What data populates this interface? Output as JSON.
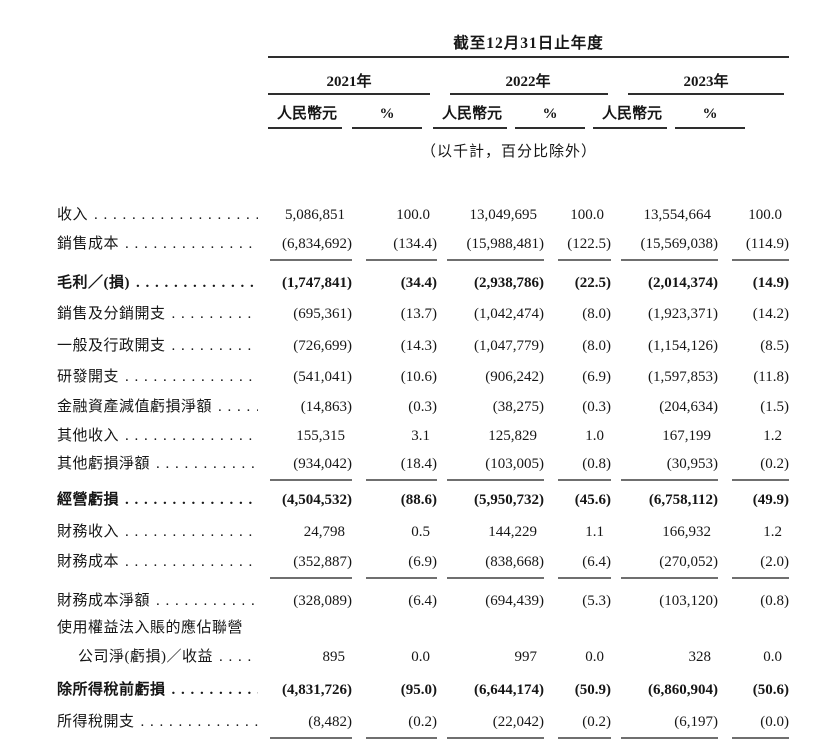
{
  "table": {
    "title": "截至12月31日止年度",
    "unit_note": "（以千計，百分比除外）",
    "year_groups": [
      {
        "year": "2021年",
        "rmb_label": "人民幣元",
        "pct_label": "%"
      },
      {
        "year": "2022年",
        "rmb_label": "人民幣元",
        "pct_label": "%"
      },
      {
        "year": "2023年",
        "rmb_label": "人民幣元",
        "pct_label": "%"
      }
    ],
    "rows": [
      {
        "label": "收入",
        "values": [
          "5,086,851",
          "100.0",
          "13,049,695",
          "100.0",
          "13,554,664",
          "100.0"
        ]
      },
      {
        "label": "銷售成本",
        "values": [
          "(6,834,692)",
          "(134.4)",
          "(15,988,481)",
          "(122.5)",
          "(15,569,038)",
          "(114.9)"
        ]
      },
      {
        "label": "毛利／(損)",
        "values": [
          "(1,747,841)",
          "(34.4)",
          "(2,938,786)",
          "(22.5)",
          "(2,014,374)",
          "(14.9)"
        ]
      },
      {
        "label": "銷售及分銷開支",
        "values": [
          "(695,361)",
          "(13.7)",
          "(1,042,474)",
          "(8.0)",
          "(1,923,371)",
          "(14.2)"
        ]
      },
      {
        "label": "一般及行政開支",
        "values": [
          "(726,699)",
          "(14.3)",
          "(1,047,779)",
          "(8.0)",
          "(1,154,126)",
          "(8.5)"
        ]
      },
      {
        "label": "研發開支",
        "values": [
          "(541,041)",
          "(10.6)",
          "(906,242)",
          "(6.9)",
          "(1,597,853)",
          "(11.8)"
        ]
      },
      {
        "label": "金融資產減值虧損淨額",
        "values": [
          "(14,863)",
          "(0.3)",
          "(38,275)",
          "(0.3)",
          "(204,634)",
          "(1.5)"
        ]
      },
      {
        "label": "其他收入",
        "values": [
          "155,315",
          "3.1",
          "125,829",
          "1.0",
          "167,199",
          "1.2"
        ]
      },
      {
        "label": "其他虧損淨額",
        "values": [
          "(934,042)",
          "(18.4)",
          "(103,005)",
          "(0.8)",
          "(30,953)",
          "(0.2)"
        ]
      },
      {
        "label": "經營虧損",
        "values": [
          "(4,504,532)",
          "(88.6)",
          "(5,950,732)",
          "(45.6)",
          "(6,758,112)",
          "(49.9)"
        ]
      },
      {
        "label": "財務收入",
        "values": [
          "24,798",
          "0.5",
          "144,229",
          "1.1",
          "166,932",
          "1.2"
        ]
      },
      {
        "label": "財務成本",
        "values": [
          "(352,887)",
          "(6.9)",
          "(838,668)",
          "(6.4)",
          "(270,052)",
          "(2.0)"
        ]
      },
      {
        "label": "財務成本淨額",
        "values": [
          "(328,089)",
          "(6.4)",
          "(694,439)",
          "(5.3)",
          "(103,120)",
          "(0.8)"
        ]
      },
      {
        "label": "使用權益法入賬的應佔聯營",
        "values": []
      },
      {
        "label": "公司淨(虧損)／收益",
        "values": [
          "895",
          "0.0",
          "997",
          "0.0",
          "328",
          "0.0"
        ]
      },
      {
        "label": "除所得稅前虧損",
        "values": [
          "(4,831,726)",
          "(95.0)",
          "(6,644,174)",
          "(50.9)",
          "(6,860,904)",
          "(50.6)"
        ]
      },
      {
        "label": "所得稅開支",
        "values": [
          "(8,482)",
          "(0.2)",
          "(22,042)",
          "(0.2)",
          "(6,197)",
          "(0.0)"
        ]
      }
    ]
  }
}
